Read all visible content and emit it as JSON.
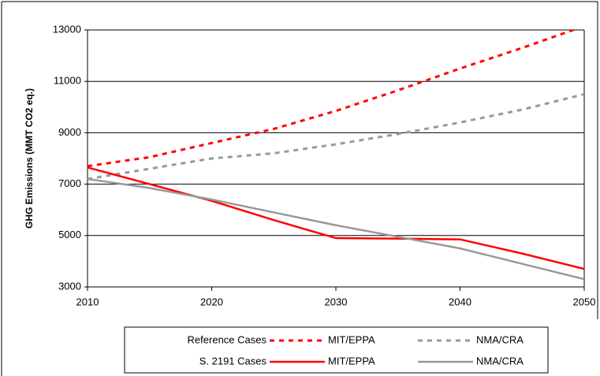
{
  "chart_data": {
    "type": "line",
    "y_label": "GHG Emissions (MMT CO2 eq.)",
    "x": [
      2010,
      2015,
      2020,
      2025,
      2030,
      2035,
      2040,
      2045,
      2050
    ],
    "xlim": [
      2010,
      2050
    ],
    "xticks": [
      2010,
      2020,
      2030,
      2040,
      2050
    ],
    "ylim": [
      3000,
      13000
    ],
    "yticks": [
      3000,
      5000,
      7000,
      9000,
      11000,
      13000
    ],
    "grid": true,
    "series": [
      {
        "name": "MIT/EPPA",
        "group": "Reference Cases",
        "dashed": true,
        "color": "#ff0000",
        "values": [
          7700,
          8050,
          8600,
          9150,
          9850,
          10650,
          11500,
          12300,
          13150
        ]
      },
      {
        "name": "NMA/CRA",
        "group": "Reference Cases",
        "dashed": true,
        "color": "#999999",
        "values": [
          7200,
          7600,
          8000,
          8200,
          8550,
          8950,
          9400,
          9900,
          10500
        ]
      },
      {
        "name": "MIT/EPPA",
        "group": "S. 2191 Cases",
        "dashed": false,
        "color": "#ff0000",
        "values": [
          7650,
          7000,
          6350,
          5600,
          4900,
          4880,
          4850,
          4300,
          3700
        ]
      },
      {
        "name": "NMA/CRA",
        "group": "S. 2191 Cases",
        "dashed": false,
        "color": "#999999",
        "values": [
          7200,
          6850,
          6400,
          5900,
          5400,
          4950,
          4500,
          3900,
          3300
        ]
      }
    ]
  }
}
